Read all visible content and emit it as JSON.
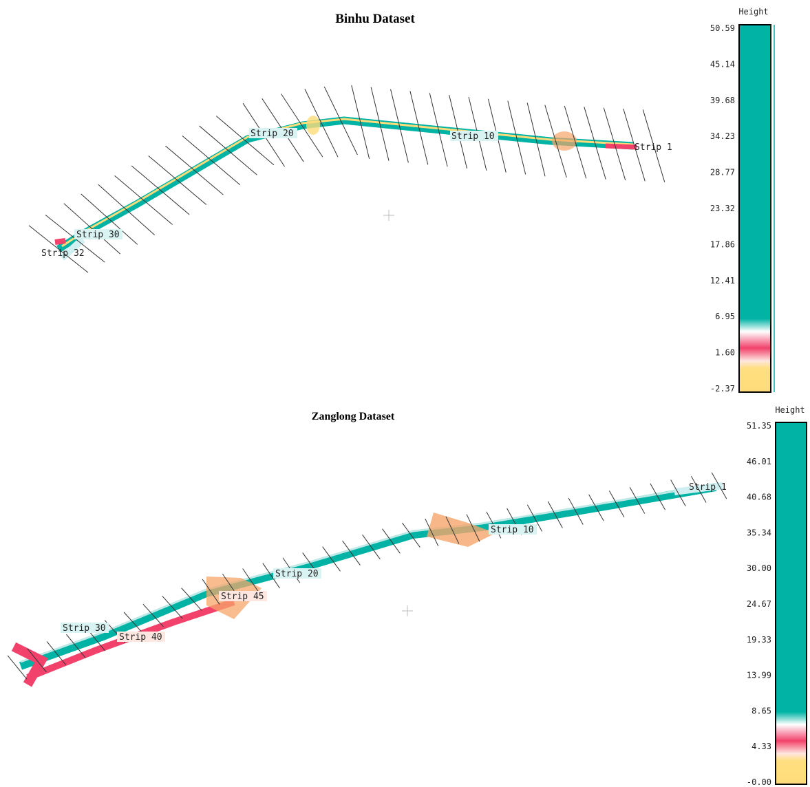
{
  "panels": [
    {
      "title": "Binhu Dataset",
      "colorbar": {
        "title": "Height",
        "ticks": [
          "50.59",
          "45.14",
          "39.68",
          "34.23",
          "28.77",
          "23.32",
          "17.86",
          "12.41",
          "6.95",
          "1.60",
          "-2.37"
        ]
      },
      "strips": [
        "Strip 1",
        "Strip 10",
        "Strip 20",
        "Strip 30",
        "Strip 32"
      ]
    },
    {
      "title": "Zanglong Dataset",
      "colorbar": {
        "title": "Height",
        "ticks": [
          "51.35",
          "46.01",
          "40.68",
          "35.34",
          "30.00",
          "24.67",
          "19.33",
          "13.99",
          "8.65",
          "4.33",
          "-0.00"
        ]
      },
      "strips": [
        "Strip 1",
        "Strip 10",
        "Strip 20",
        "Strip 30",
        "Strip 40",
        "Strip 45"
      ]
    }
  ]
}
